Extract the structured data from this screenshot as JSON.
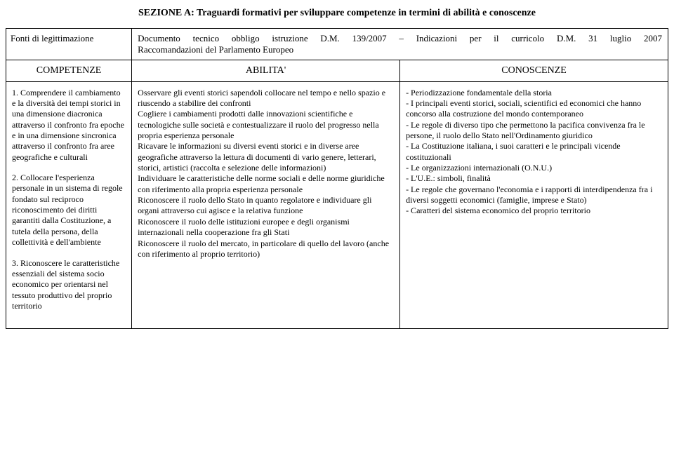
{
  "section_title": "SEZIONE A: Traguardi formativi per sviluppare competenze in termini di abilità e conoscenze",
  "top_left": "Fonti di legittimazione",
  "top_right_line1": "Documento tecnico obbligo istruzione D.M. 139/2007 – Indicazioni per il curricolo D.M. 31 luglio 2007",
  "top_right_line2": "Raccomandazioni del Parlamento Europeo",
  "headers": {
    "competenze": "COMPETENZE",
    "abilita": "ABILITA'",
    "conoscenze": "CONOSCENZE"
  },
  "competenze": {
    "p1": "1. Comprendere il cambiamento e la diversità dei tempi storici in una dimensione diacronica attraverso il confronto fra epoche e in una dimensione sincronica attraverso il confronto fra aree geografiche e culturali",
    "p2": "2. Collocare l'esperienza personale in un sistema di regole fondato sul reciproco riconoscimento dei diritti garantiti dalla Costituzione, a tutela della persona, della collettività e dell'ambiente",
    "p3": "3. Riconoscere le caratteristiche essenziali del sistema socio economico per orientarsi nel tessuto produttivo del proprio territorio"
  },
  "abilita": {
    "p1": "Osservare gli eventi storici sapendoli collocare nel tempo e nello spazio e riuscendo a stabilire dei confronti",
    "p2": "Cogliere i cambiamenti prodotti dalle innovazioni scientifiche e tecnologiche sulle società e contestualizzare il ruolo del progresso nella propria esperienza personale",
    "p3": "Ricavare le informazioni su diversi eventi storici e in diverse aree geografiche attraverso la lettura di documenti di vario genere, letterari, storici, artistici (raccolta e selezione delle informazioni)",
    "p4": "Individuare le caratteristiche delle norme sociali e delle norme giuridiche con riferimento alla propria esperienza personale",
    "p5": "Riconoscere il ruolo dello Stato in quanto regolatore e individuare gli organi attraverso cui agisce e la relativa funzione",
    "p6": "Riconoscere il ruolo delle istituzioni europee e degli organismi internazionali nella cooperazione fra gli Stati",
    "p7": "Riconoscere il ruolo del mercato, in particolare di quello del lavoro (anche con riferimento al proprio territorio)"
  },
  "conoscenze": {
    "l1": "- Periodizzazione fondamentale della storia",
    "l2": "- I principali eventi storici, sociali, scientifici ed economici che hanno concorso alla costruzione del mondo contemporaneo",
    "l3": "- Le regole di diverso tipo che permettono la pacifica convivenza fra le persone, il ruolo dello Stato nell'Ordinamento giuridico",
    "l4": "- La Costituzione italiana, i suoi caratteri e le principali vicende costituzionali",
    "l5": "- Le organizzazioni internazionali (O.N.U.)",
    "l6": "- L'U.E.: simboli, finalità",
    "l7": "- Le regole che governano l'economia e i rapporti di interdipendenza fra i diversi soggetti economici (famiglie, imprese e Stato)",
    "l8": "- Caratteri del sistema economico del proprio territorio"
  }
}
